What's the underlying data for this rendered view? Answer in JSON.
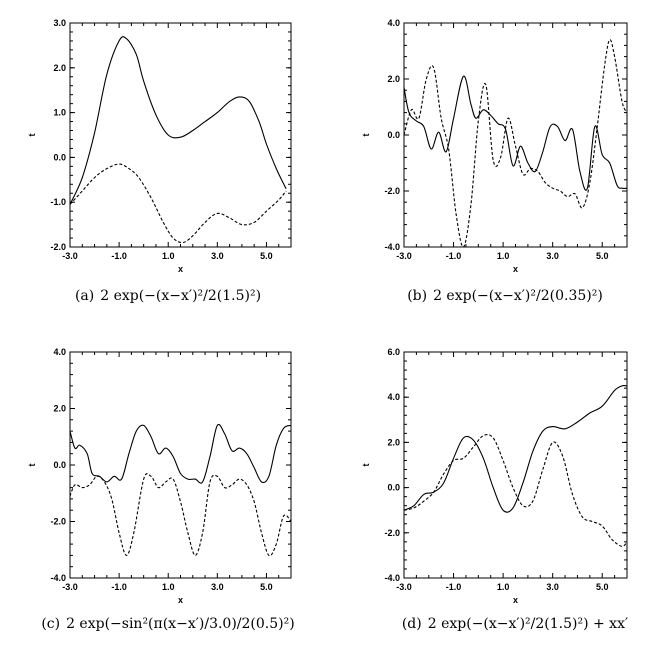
{
  "chart_data": [
    {
      "type": "line",
      "xlabel": "x",
      "ylabel": "t",
      "xlim": [
        -3.0,
        6.0
      ],
      "ylim": [
        -2.0,
        3.0
      ],
      "xticks": [
        "-3.0",
        "-1.0",
        "1.0",
        "3.0",
        "5.0"
      ],
      "yticks": [
        "-2.0",
        "-1.0",
        "0.0",
        "1.0",
        "2.0",
        "3.0"
      ],
      "caption": {
        "label": "(a)",
        "text": "2 exp(−(x−x′)²/2(1.5)²)"
      },
      "series": [
        {
          "style": "solid",
          "x": [
            -3.0,
            -2.5,
            -2.0,
            -1.5,
            -1.0,
            -0.7,
            -0.3,
            0.0,
            0.5,
            1.0,
            1.5,
            2.0,
            2.5,
            3.0,
            3.5,
            3.9,
            4.3,
            4.7,
            5.0,
            5.4,
            5.8
          ],
          "y": [
            -1.05,
            -0.45,
            0.55,
            1.85,
            2.6,
            2.65,
            2.3,
            1.7,
            0.95,
            0.5,
            0.45,
            0.6,
            0.8,
            1.0,
            1.25,
            1.35,
            1.25,
            0.8,
            0.3,
            -0.25,
            -0.7
          ]
        },
        {
          "style": "dashed",
          "x": [
            -3.0,
            -2.5,
            -2.0,
            -1.5,
            -1.0,
            -0.6,
            -0.2,
            0.3,
            0.8,
            1.2,
            1.6,
            2.0,
            2.5,
            3.0,
            3.5,
            4.0,
            4.5,
            5.0,
            5.5,
            5.8
          ],
          "y": [
            -1.05,
            -0.75,
            -0.45,
            -0.25,
            -0.15,
            -0.25,
            -0.45,
            -0.9,
            -1.45,
            -1.8,
            -1.9,
            -1.75,
            -1.45,
            -1.25,
            -1.35,
            -1.5,
            -1.45,
            -1.2,
            -0.95,
            -0.75
          ]
        }
      ]
    },
    {
      "type": "line",
      "xlabel": "x",
      "ylabel": "t",
      "xlim": [
        -3.0,
        6.0
      ],
      "ylim": [
        -4.0,
        4.0
      ],
      "xticks": [
        "-3.0",
        "-1.0",
        "1.0",
        "3.0",
        "5.0"
      ],
      "yticks": [
        "-4.0",
        "-2.0",
        "0.0",
        "2.0",
        "4.0"
      ],
      "caption": {
        "label": "(b)",
        "text": "2 exp(−(x−x′)²/2(0.35)²)"
      },
      "series": [
        {
          "style": "solid",
          "x": [
            -3.0,
            -2.8,
            -2.5,
            -2.2,
            -1.9,
            -1.6,
            -1.3,
            -1.0,
            -0.6,
            -0.3,
            -0.1,
            0.2,
            0.5,
            0.8,
            1.1,
            1.4,
            1.7,
            2.0,
            2.3,
            2.6,
            2.9,
            3.2,
            3.5,
            3.8,
            4.1,
            4.4,
            4.7,
            5.0,
            5.3,
            5.6,
            5.8,
            6.0
          ],
          "y": [
            1.7,
            0.8,
            0.5,
            0.3,
            -0.5,
            0.1,
            -0.6,
            0.6,
            2.1,
            1.1,
            0.6,
            0.9,
            0.7,
            0.4,
            0.2,
            -1.1,
            -0.4,
            -1.0,
            -1.3,
            -0.6,
            0.3,
            0.3,
            -0.2,
            0.2,
            -1.3,
            -1.9,
            0.3,
            -0.7,
            -1.0,
            -1.8,
            -1.9,
            -1.9
          ]
        },
        {
          "style": "dashed",
          "x": [
            -3.0,
            -2.7,
            -2.4,
            -2.1,
            -1.8,
            -1.5,
            -1.2,
            -0.9,
            -0.6,
            -0.3,
            0.0,
            0.3,
            0.6,
            0.9,
            1.2,
            1.5,
            1.8,
            2.1,
            2.4,
            2.7,
            3.0,
            3.3,
            3.6,
            3.9,
            4.2,
            4.5,
            4.8,
            5.1,
            5.3,
            5.5,
            5.8,
            6.0
          ],
          "y": [
            0.0,
            0.9,
            0.6,
            2.0,
            2.4,
            0.6,
            -0.5,
            -2.8,
            -4.0,
            -2.5,
            0.5,
            1.8,
            -0.9,
            -0.8,
            0.6,
            -0.4,
            -1.4,
            -1.2,
            -1.3,
            -1.7,
            -1.9,
            -2.0,
            -2.2,
            -2.1,
            -2.6,
            -1.7,
            0.3,
            2.5,
            3.4,
            2.8,
            1.2,
            0.8
          ]
        }
      ]
    },
    {
      "type": "line",
      "xlabel": "x",
      "ylabel": "t",
      "xlim": [
        -3.0,
        6.0
      ],
      "ylim": [
        -4.0,
        4.0
      ],
      "xticks": [
        "-3.0",
        "-1.0",
        "1.0",
        "3.0",
        "5.0"
      ],
      "yticks": [
        "-4.0",
        "-2.0",
        "0.0",
        "2.0",
        "4.0"
      ],
      "caption": {
        "label": "(c)",
        "text": "2 exp(−sin²(π(x−x′)/3.0)/2(0.5)²)"
      },
      "series": [
        {
          "style": "solid",
          "x": [
            -3.0,
            -2.8,
            -2.6,
            -2.3,
            -2.1,
            -1.8,
            -1.5,
            -1.2,
            -0.9,
            -0.6,
            -0.3,
            0.0,
            0.3,
            0.6,
            0.9,
            1.2,
            1.5,
            1.8,
            2.1,
            2.4,
            2.7,
            3.0,
            3.3,
            3.6,
            3.9,
            4.2,
            4.5,
            4.8,
            5.1,
            5.4,
            5.7,
            6.0
          ],
          "y": [
            1.2,
            0.6,
            0.7,
            0.4,
            -0.3,
            -0.4,
            -0.6,
            -0.4,
            -0.5,
            0.4,
            1.2,
            1.4,
            1.0,
            0.4,
            0.6,
            0.3,
            -0.3,
            -0.5,
            -0.5,
            -0.6,
            0.3,
            1.4,
            1.1,
            0.5,
            0.6,
            0.4,
            -0.1,
            -0.6,
            -0.4,
            0.7,
            1.3,
            1.4
          ]
        },
        {
          "style": "dashed",
          "x": [
            -3.0,
            -2.8,
            -2.5,
            -2.2,
            -1.9,
            -1.6,
            -1.3,
            -1.0,
            -0.7,
            -0.4,
            0.0,
            0.3,
            0.6,
            0.9,
            1.2,
            1.5,
            1.8,
            2.1,
            2.4,
            2.7,
            3.0,
            3.3,
            3.6,
            3.9,
            4.2,
            4.5,
            4.8,
            5.1,
            5.4,
            5.7,
            6.0
          ],
          "y": [
            -1.1,
            -0.7,
            -0.8,
            -0.7,
            -0.4,
            -0.6,
            -1.2,
            -2.4,
            -3.2,
            -2.4,
            -0.5,
            -0.4,
            -0.8,
            -0.6,
            -0.5,
            -1.3,
            -2.4,
            -3.2,
            -2.4,
            -0.6,
            -0.4,
            -0.8,
            -0.7,
            -0.5,
            -0.7,
            -1.3,
            -2.4,
            -3.2,
            -2.8,
            -1.8,
            -2.0
          ]
        }
      ]
    },
    {
      "type": "line",
      "xlabel": "x",
      "ylabel": "t",
      "xlim": [
        -3.0,
        6.0
      ],
      "ylim": [
        -4.0,
        6.0
      ],
      "xticks": [
        "-3.0",
        "-1.0",
        "1.0",
        "3.0",
        "5.0"
      ],
      "yticks": [
        "-4.0",
        "-2.0",
        "0.0",
        "2.0",
        "4.0",
        "6.0"
      ],
      "caption": {
        "label": "(d)",
        "text": "2 exp(−(x−x′)²/2(1.5)²) + xx′"
      },
      "series": [
        {
          "style": "solid",
          "x": [
            -3.0,
            -2.6,
            -2.2,
            -1.8,
            -1.4,
            -1.0,
            -0.6,
            -0.2,
            0.2,
            0.6,
            1.0,
            1.4,
            1.8,
            2.2,
            2.6,
            3.0,
            3.5,
            4.0,
            4.5,
            5.0,
            5.5,
            5.8,
            6.0
          ],
          "y": [
            -1.0,
            -0.8,
            -0.3,
            -0.2,
            0.2,
            1.3,
            2.2,
            2.1,
            1.3,
            0.0,
            -1.0,
            -0.9,
            0.2,
            1.6,
            2.5,
            2.7,
            2.6,
            2.9,
            3.3,
            3.6,
            4.3,
            4.5,
            4.5
          ]
        },
        {
          "style": "dashed",
          "x": [
            -3.0,
            -2.6,
            -2.2,
            -1.8,
            -1.4,
            -1.0,
            -0.6,
            -0.2,
            0.2,
            0.6,
            1.0,
            1.4,
            1.8,
            2.2,
            2.6,
            3.0,
            3.4,
            3.8,
            4.2,
            4.6,
            5.0,
            5.4,
            5.8,
            6.0
          ],
          "y": [
            -1.0,
            -0.9,
            -0.6,
            -0.2,
            0.6,
            1.2,
            1.3,
            1.8,
            2.3,
            2.2,
            1.2,
            0.0,
            -0.8,
            -0.6,
            0.8,
            2.0,
            1.4,
            -0.3,
            -1.3,
            -1.5,
            -1.7,
            -2.3,
            -2.6,
            -2.4
          ]
        }
      ]
    }
  ]
}
